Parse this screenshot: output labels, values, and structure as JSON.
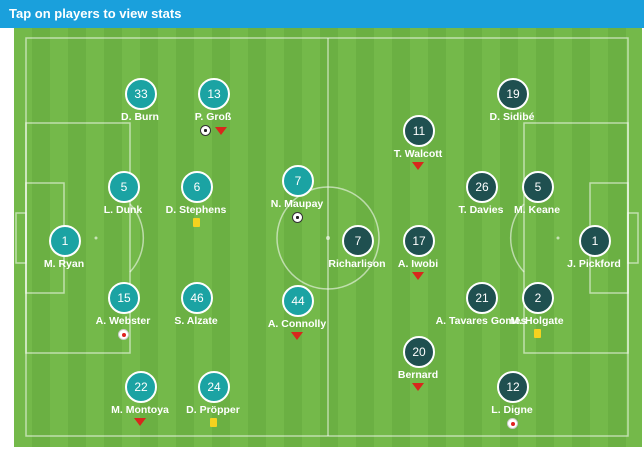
{
  "header": {
    "title": "Tap on players to view stats"
  },
  "colors": {
    "header": "#1aa0dc",
    "home": "#1ba3a3",
    "away": "#1f5050",
    "pitch": "#6bb043",
    "sub_arrow": "#d8271c",
    "yellow_card": "#f5d21f"
  },
  "players": [
    {
      "num": "33",
      "name": "D. Burn",
      "team": "home",
      "icons": []
    },
    {
      "num": "13",
      "name": "P. Groß",
      "team": "home",
      "icons": [
        "ball-icon",
        "sub-off-arrow-icon"
      ]
    },
    {
      "num": "5",
      "name": "L. Dunk",
      "team": "home",
      "icons": []
    },
    {
      "num": "6",
      "name": "D. Stephens",
      "team": "home",
      "icons": [
        "yellow-card-icon"
      ]
    },
    {
      "num": "7",
      "name": "N. Maupay",
      "team": "home",
      "icons": [
        "ball-icon"
      ]
    },
    {
      "num": "1",
      "name": "M. Ryan",
      "team": "home",
      "icons": []
    },
    {
      "num": "15",
      "name": "A. Webster",
      "team": "home",
      "icons": [
        "own-goal-icon"
      ]
    },
    {
      "num": "46",
      "name": "S. Alzate",
      "team": "home",
      "icons": []
    },
    {
      "num": "44",
      "name": "A. Connolly",
      "team": "home",
      "icons": [
        "sub-off-arrow-icon"
      ]
    },
    {
      "num": "22",
      "name": "M. Montoya",
      "team": "home",
      "icons": [
        "sub-off-arrow-icon"
      ]
    },
    {
      "num": "24",
      "name": "D. Pröpper",
      "team": "home",
      "icons": [
        "yellow-card-icon"
      ]
    },
    {
      "num": "19",
      "name": "D. Sidibé",
      "team": "away",
      "icons": []
    },
    {
      "num": "11",
      "name": "T. Walcott",
      "team": "away",
      "icons": [
        "sub-off-arrow-icon"
      ]
    },
    {
      "num": "26",
      "name": "T. Davies",
      "team": "away",
      "icons": []
    },
    {
      "num": "5",
      "name": "M. Keane",
      "team": "away",
      "icons": []
    },
    {
      "num": "7",
      "name": "Richarlison",
      "team": "away",
      "icons": []
    },
    {
      "num": "17",
      "name": "A. Iwobi",
      "team": "away",
      "icons": [
        "sub-off-arrow-icon"
      ]
    },
    {
      "num": "1",
      "name": "J. Pickford",
      "team": "away",
      "icons": []
    },
    {
      "num": "21",
      "name": "A. Tavares Gomes",
      "team": "away",
      "icons": []
    },
    {
      "num": "2",
      "name": "M. Holgate",
      "team": "away",
      "icons": [
        "yellow-card-icon"
      ]
    },
    {
      "num": "20",
      "name": "Bernard",
      "team": "away",
      "icons": [
        "sub-off-arrow-icon"
      ]
    },
    {
      "num": "12",
      "name": "L. Digne",
      "team": "away",
      "icons": [
        "own-goal-icon"
      ]
    }
  ]
}
